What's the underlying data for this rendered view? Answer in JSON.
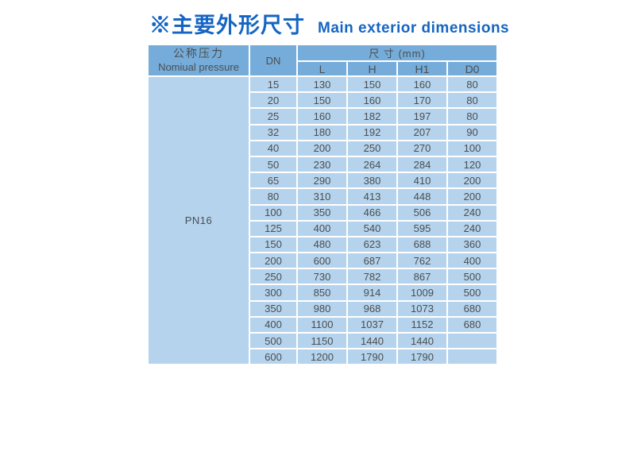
{
  "title": {
    "zh": "※主要外形尺寸",
    "en": "Main exterior dimensions"
  },
  "table": {
    "pressure_header_zh": "公称压力",
    "pressure_header_en": "Nomiual pressure",
    "dn_header": "DN",
    "dims_header": "尺 寸 (mm)",
    "dim_columns": [
      "L",
      "H",
      "H1",
      "D0"
    ],
    "pressure_value": "PN16",
    "rows": [
      {
        "dn": "15",
        "l": "130",
        "h": "150",
        "h1": "160",
        "d0": "80"
      },
      {
        "dn": "20",
        "l": "150",
        "h": "160",
        "h1": "170",
        "d0": "80"
      },
      {
        "dn": "25",
        "l": "160",
        "h": "182",
        "h1": "197",
        "d0": "80"
      },
      {
        "dn": "32",
        "l": "180",
        "h": "192",
        "h1": "207",
        "d0": "90"
      },
      {
        "dn": "40",
        "l": "200",
        "h": "250",
        "h1": "270",
        "d0": "100"
      },
      {
        "dn": "50",
        "l": "230",
        "h": "264",
        "h1": "284",
        "d0": "120"
      },
      {
        "dn": "65",
        "l": "290",
        "h": "380",
        "h1": "410",
        "d0": "200"
      },
      {
        "dn": "80",
        "l": "310",
        "h": "413",
        "h1": "448",
        "d0": "200"
      },
      {
        "dn": "100",
        "l": "350",
        "h": "466",
        "h1": "506",
        "d0": "240"
      },
      {
        "dn": "125",
        "l": "400",
        "h": "540",
        "h1": "595",
        "d0": "240"
      },
      {
        "dn": "150",
        "l": "480",
        "h": "623",
        "h1": "688",
        "d0": "360"
      },
      {
        "dn": "200",
        "l": "600",
        "h": "687",
        "h1": "762",
        "d0": "400"
      },
      {
        "dn": "250",
        "l": "730",
        "h": "782",
        "h1": "867",
        "d0": "500"
      },
      {
        "dn": "300",
        "l": "850",
        "h": "914",
        "h1": "1009",
        "d0": "500"
      },
      {
        "dn": "350",
        "l": "980",
        "h": "968",
        "h1": "1073",
        "d0": "680"
      },
      {
        "dn": "400",
        "l": "1100",
        "h": "1037",
        "h1": "1152",
        "d0": "680"
      },
      {
        "dn": "500",
        "l": "1150",
        "h": "1440",
        "h1": "1440",
        "d0": ""
      },
      {
        "dn": "600",
        "l": "1200",
        "h": "1790",
        "h1": "1790",
        "d0": ""
      }
    ]
  },
  "colors": {
    "title_blue": "#1565c4",
    "header_bg": "#76acd9",
    "body_bg": "#b5d3ec",
    "grid": "#ffffff",
    "text": "#4a4e52"
  }
}
